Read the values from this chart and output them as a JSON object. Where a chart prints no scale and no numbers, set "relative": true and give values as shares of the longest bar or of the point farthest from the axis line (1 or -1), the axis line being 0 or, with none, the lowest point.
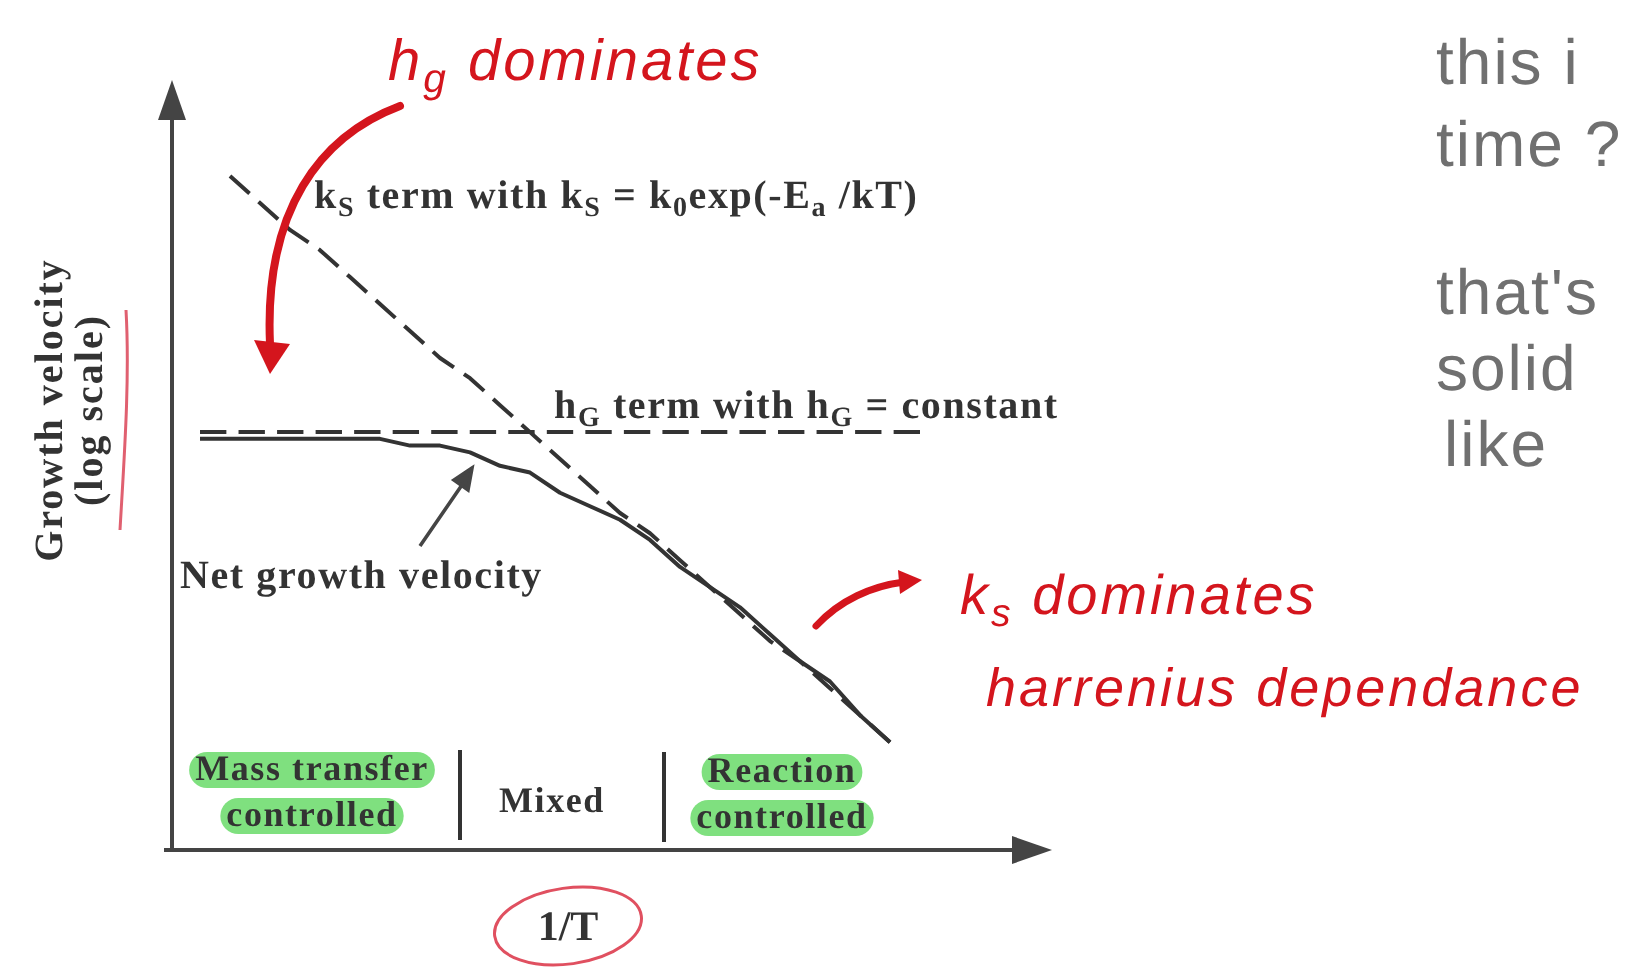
{
  "chart_data": {
    "type": "line",
    "relative": true,
    "xlabel": "1/T",
    "ylabel": "Growth velocity (log scale)",
    "categories": [
      null,
      null,
      null,
      null,
      null,
      null,
      null,
      null,
      null,
      null,
      null,
      null,
      null,
      null,
      null,
      null,
      null,
      null,
      null,
      null,
      null,
      null,
      null,
      null,
      null
    ],
    "series": [
      {
        "name": "k$_{S}$ term with k$_{S}$ = k$_{0}$exp(-E$_{a}$ /kT)",
        "color": "#333333",
        "line_style": "dashed",
        "values": [
          null,
          1.0,
          0.96,
          0.92,
          0.89,
          0.85,
          0.81,
          0.77,
          0.73,
          0.7,
          0.66,
          0.62,
          0.58,
          0.54,
          0.5,
          0.47,
          0.43,
          0.39,
          0.35,
          0.31,
          0.28,
          0.24,
          0.2,
          0.16,
          null
        ]
      },
      {
        "name": "h$_{G}$ term with h$_{G}$ = constant",
        "color": "#333333",
        "line_style": "dashed",
        "values": [
          0.62,
          0.62,
          0.62,
          0.62,
          0.62,
          0.62,
          0.62,
          0.62,
          0.62,
          0.62,
          0.62,
          0.62,
          0.62,
          0.62,
          0.62,
          0.62,
          0.62,
          0.62,
          0.62,
          0.62,
          0.62,
          0.62,
          0.62,
          0.62,
          0.62
        ]
      },
      {
        "name": "Net growth velocity",
        "color": "#333333",
        "line_style": "solid",
        "values": [
          0.61,
          0.61,
          0.61,
          0.61,
          0.61,
          0.61,
          0.61,
          0.6,
          0.6,
          0.59,
          0.57,
          0.56,
          0.53,
          0.51,
          0.49,
          0.46,
          0.42,
          0.39,
          0.36,
          0.32,
          0.28,
          0.25,
          0.2,
          0.16,
          null
        ]
      }
    ],
    "annotations": [
      "Mass transfer controlled",
      "Mixed",
      "Reaction controlled",
      "h$_{g}$ dominates",
      "k$_{s}$ dominates",
      "harrenius dependance",
      "this i",
      "time ?",
      "that's",
      "solid",
      "like"
    ]
  }
}
